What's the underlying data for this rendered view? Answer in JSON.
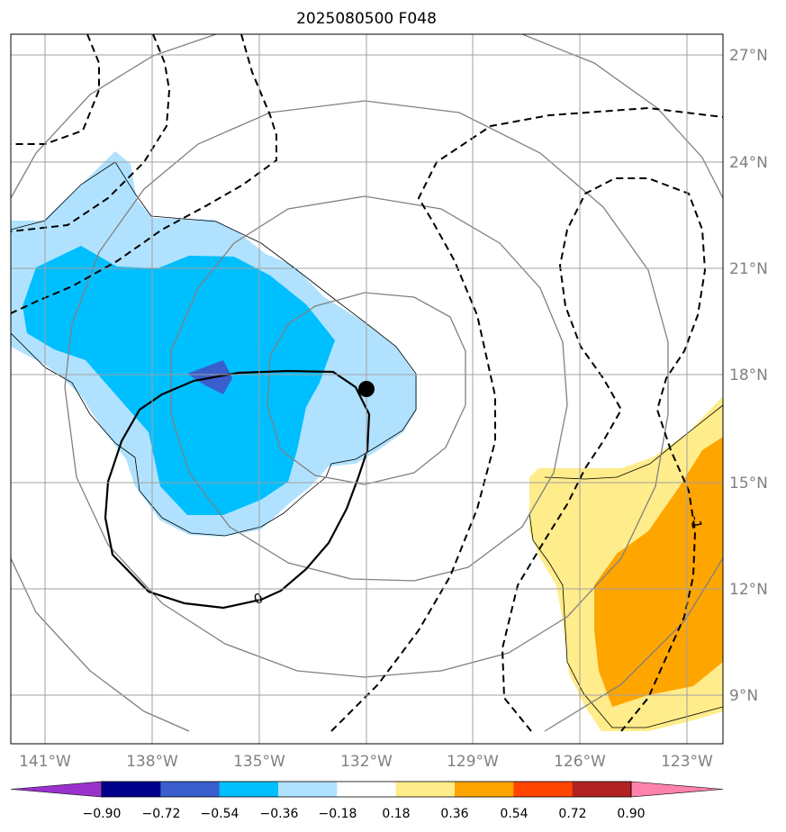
{
  "title": "2025080500 F048",
  "map": {
    "lon_ticks": [
      "141°W",
      "138°W",
      "135°W",
      "132°W",
      "129°W",
      "126°W",
      "123°W"
    ],
    "lat_ticks": [
      "27°N",
      "24°N",
      "21°N",
      "18°N",
      "15°N",
      "12°N",
      "9°N"
    ],
    "center_marker": {
      "lon": "132°W",
      "lat": "17.6°N"
    },
    "contour_labels": [
      "0",
      "-1"
    ]
  },
  "colorbar": {
    "labels": [
      "−0.90",
      "−0.72",
      "−0.54",
      "−0.36",
      "−0.18",
      "0.18",
      "0.36",
      "0.54",
      "0.72",
      "0.90"
    ],
    "colors": [
      "#9932cc",
      "#00008b",
      "#3a5fcd",
      "#00bfff",
      "#b0e2ff",
      "#ffffff",
      "#ffec8b",
      "#ffa500",
      "#ff4500",
      "#b22222",
      "#ff82ab"
    ]
  }
}
